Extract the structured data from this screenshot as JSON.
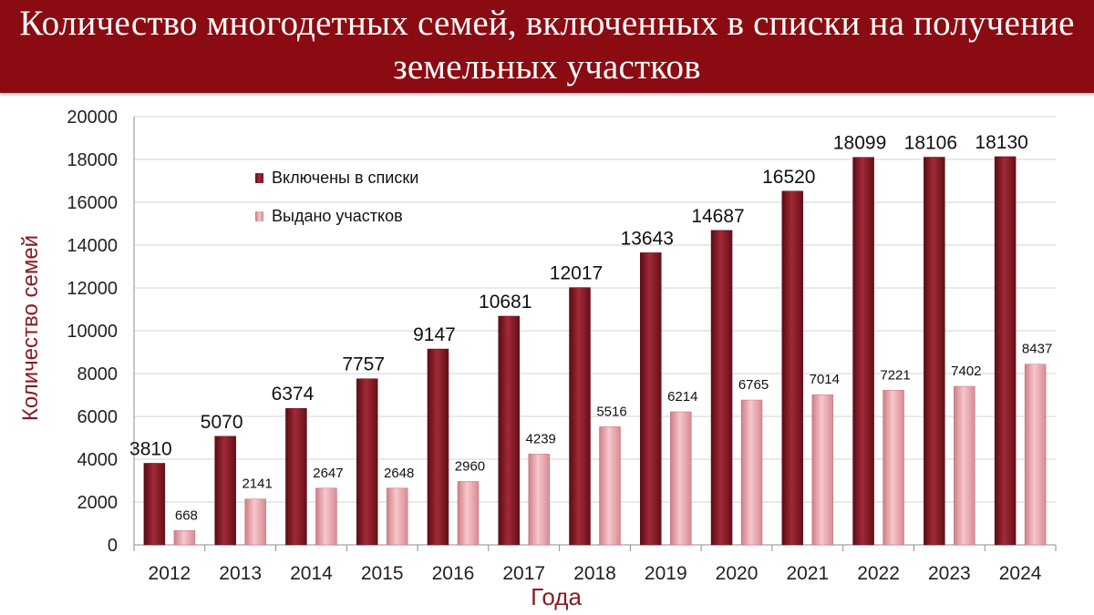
{
  "header": {
    "title": "Количество многодетных семей, включенных в списки на получение земельных участков"
  },
  "chart_data": {
    "type": "bar",
    "categories": [
      "2012",
      "2013",
      "2014",
      "2015",
      "2016",
      "2017",
      "2018",
      "2019",
      "2020",
      "2021",
      "2022",
      "2023",
      "2024"
    ],
    "series": [
      {
        "name": "Включены в списки",
        "values": [
          3810,
          5070,
          6374,
          7757,
          9147,
          10681,
          12017,
          13643,
          14687,
          16520,
          18099,
          18106,
          18130
        ],
        "color": "#8b1a24"
      },
      {
        "name": "Выдано участков",
        "values": [
          668,
          2141,
          2647,
          2648,
          2960,
          4239,
          5516,
          6214,
          6765,
          7014,
          7221,
          7402,
          8437
        ],
        "color": "#e8a0a7"
      }
    ],
    "title": "Количество многодетных семей, включенных в списки на получение земельных участков",
    "xlabel": "Года",
    "ylabel": "Количество семей",
    "ylim": [
      0,
      20000
    ],
    "yticks": [
      0,
      2000,
      4000,
      6000,
      8000,
      10000,
      12000,
      14000,
      16000,
      18000,
      20000
    ],
    "grid": true,
    "legend_position": "top-left"
  }
}
